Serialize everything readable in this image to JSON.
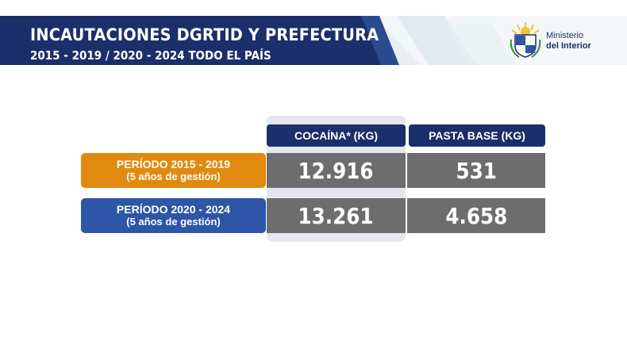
{
  "header": {
    "title": "INCAUTACIONES DGRTID Y PREFECTURA",
    "subtitle": "2015 - 2019 / 2020 - 2024 TODO EL PAÍS",
    "logo": {
      "line1": "Ministerio",
      "line2": "del Interior",
      "icon": "uruguay-coat-of-arms-icon"
    },
    "colors": {
      "navy": "#1b2f6a",
      "light": "#e9eef3"
    }
  },
  "table": {
    "columns": [
      {
        "label": "COCAÍNA* (KG)"
      },
      {
        "label": "PASTA BASE (KG)"
      }
    ],
    "rows": [
      {
        "period": "PERÍODO 2015 - 2019",
        "note": "(5 años de gestión)",
        "values": [
          "12.916",
          "531"
        ],
        "color": "#e08a0f"
      },
      {
        "period": "PERÍODO 2020 - 2024",
        "note": "(5 años de gestión)",
        "values": [
          "13.261",
          "4.658"
        ],
        "color": "#2d55a8"
      }
    ],
    "colors": {
      "header": "#1b2f6a",
      "cell": "#6d6d6d",
      "highlight": "#e4e7ee"
    }
  }
}
